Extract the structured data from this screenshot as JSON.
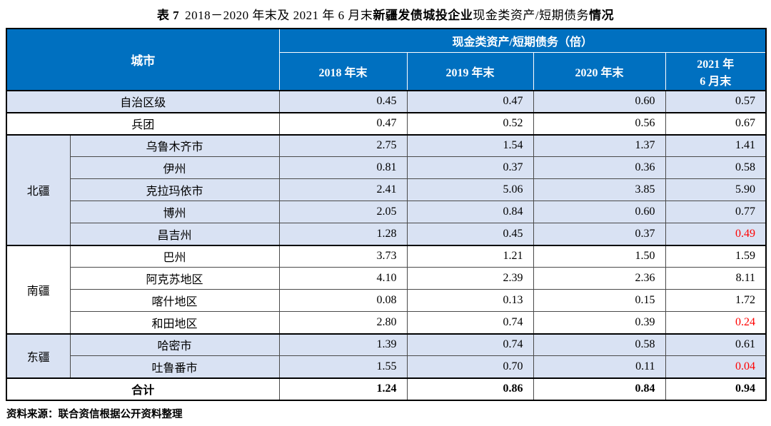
{
  "title": {
    "prefix": "表 7",
    "period": "2018－2020 年末及 2021 年 6 月末",
    "subject": "新疆发债城投企业",
    "metric": "现金类资产/短期债务",
    "suffix": "情况"
  },
  "table": {
    "header": {
      "city": "城市",
      "metric_group": "现金类资产/短期债务（倍）",
      "periods": [
        "2018 年末",
        "2019 年末",
        "2020 年末",
        "2021 年 6 月末"
      ],
      "period4_lines": [
        "2021 年",
        "6 月末"
      ]
    },
    "sections": [
      {
        "type": "row",
        "shade": true,
        "rows": [
          {
            "city": "自治区级",
            "values": [
              "0.45",
              "0.47",
              "0.60",
              "0.57"
            ]
          }
        ]
      },
      {
        "type": "row",
        "shade": false,
        "rows": [
          {
            "city": "兵团",
            "values": [
              "0.47",
              "0.52",
              "0.56",
              "0.67"
            ]
          }
        ]
      },
      {
        "type": "group",
        "region": "北疆",
        "shade": true,
        "rows": [
          {
            "city": "乌鲁木齐市",
            "values": [
              "2.75",
              "1.54",
              "1.37",
              "1.41"
            ]
          },
          {
            "city": "伊州",
            "values": [
              "0.81",
              "0.37",
              "0.36",
              "0.58"
            ]
          },
          {
            "city": "克拉玛依市",
            "values": [
              "2.41",
              "5.06",
              "3.85",
              "5.90"
            ]
          },
          {
            "city": "博州",
            "values": [
              "2.05",
              "0.84",
              "0.60",
              "0.77"
            ]
          },
          {
            "city": "昌吉州",
            "values": [
              "1.28",
              "0.45",
              "0.37",
              "0.49"
            ],
            "red_cols": [
              3
            ]
          }
        ]
      },
      {
        "type": "group",
        "region": "南疆",
        "shade": false,
        "rows": [
          {
            "city": "巴州",
            "values": [
              "3.73",
              "1.21",
              "1.50",
              "1.59"
            ]
          },
          {
            "city": "阿克苏地区",
            "values": [
              "4.10",
              "2.39",
              "2.36",
              "8.11"
            ]
          },
          {
            "city": "喀什地区",
            "values": [
              "0.08",
              "0.13",
              "0.15",
              "1.72"
            ]
          },
          {
            "city": "和田地区",
            "values": [
              "2.80",
              "0.74",
              "0.39",
              "0.24"
            ],
            "red_cols": [
              3
            ]
          }
        ]
      },
      {
        "type": "group",
        "region": "东疆",
        "shade": true,
        "rows": [
          {
            "city": "哈密市",
            "values": [
              "1.39",
              "0.74",
              "0.58",
              "0.61"
            ]
          },
          {
            "city": "吐鲁番市",
            "values": [
              "1.55",
              "0.70",
              "0.11",
              "0.04"
            ],
            "red_cols": [
              3
            ]
          }
        ]
      },
      {
        "type": "total",
        "shade": false,
        "rows": [
          {
            "city": "合计",
            "values": [
              "1.24",
              "0.86",
              "0.84",
              "0.94"
            ]
          }
        ]
      }
    ]
  },
  "source": "资料来源：联合资信根据公开资料整理",
  "colors": {
    "header_blue": "#0070C0",
    "row_shade": "#D9E2F3",
    "alert_red": "#FF0000",
    "border_black": "#000000"
  }
}
